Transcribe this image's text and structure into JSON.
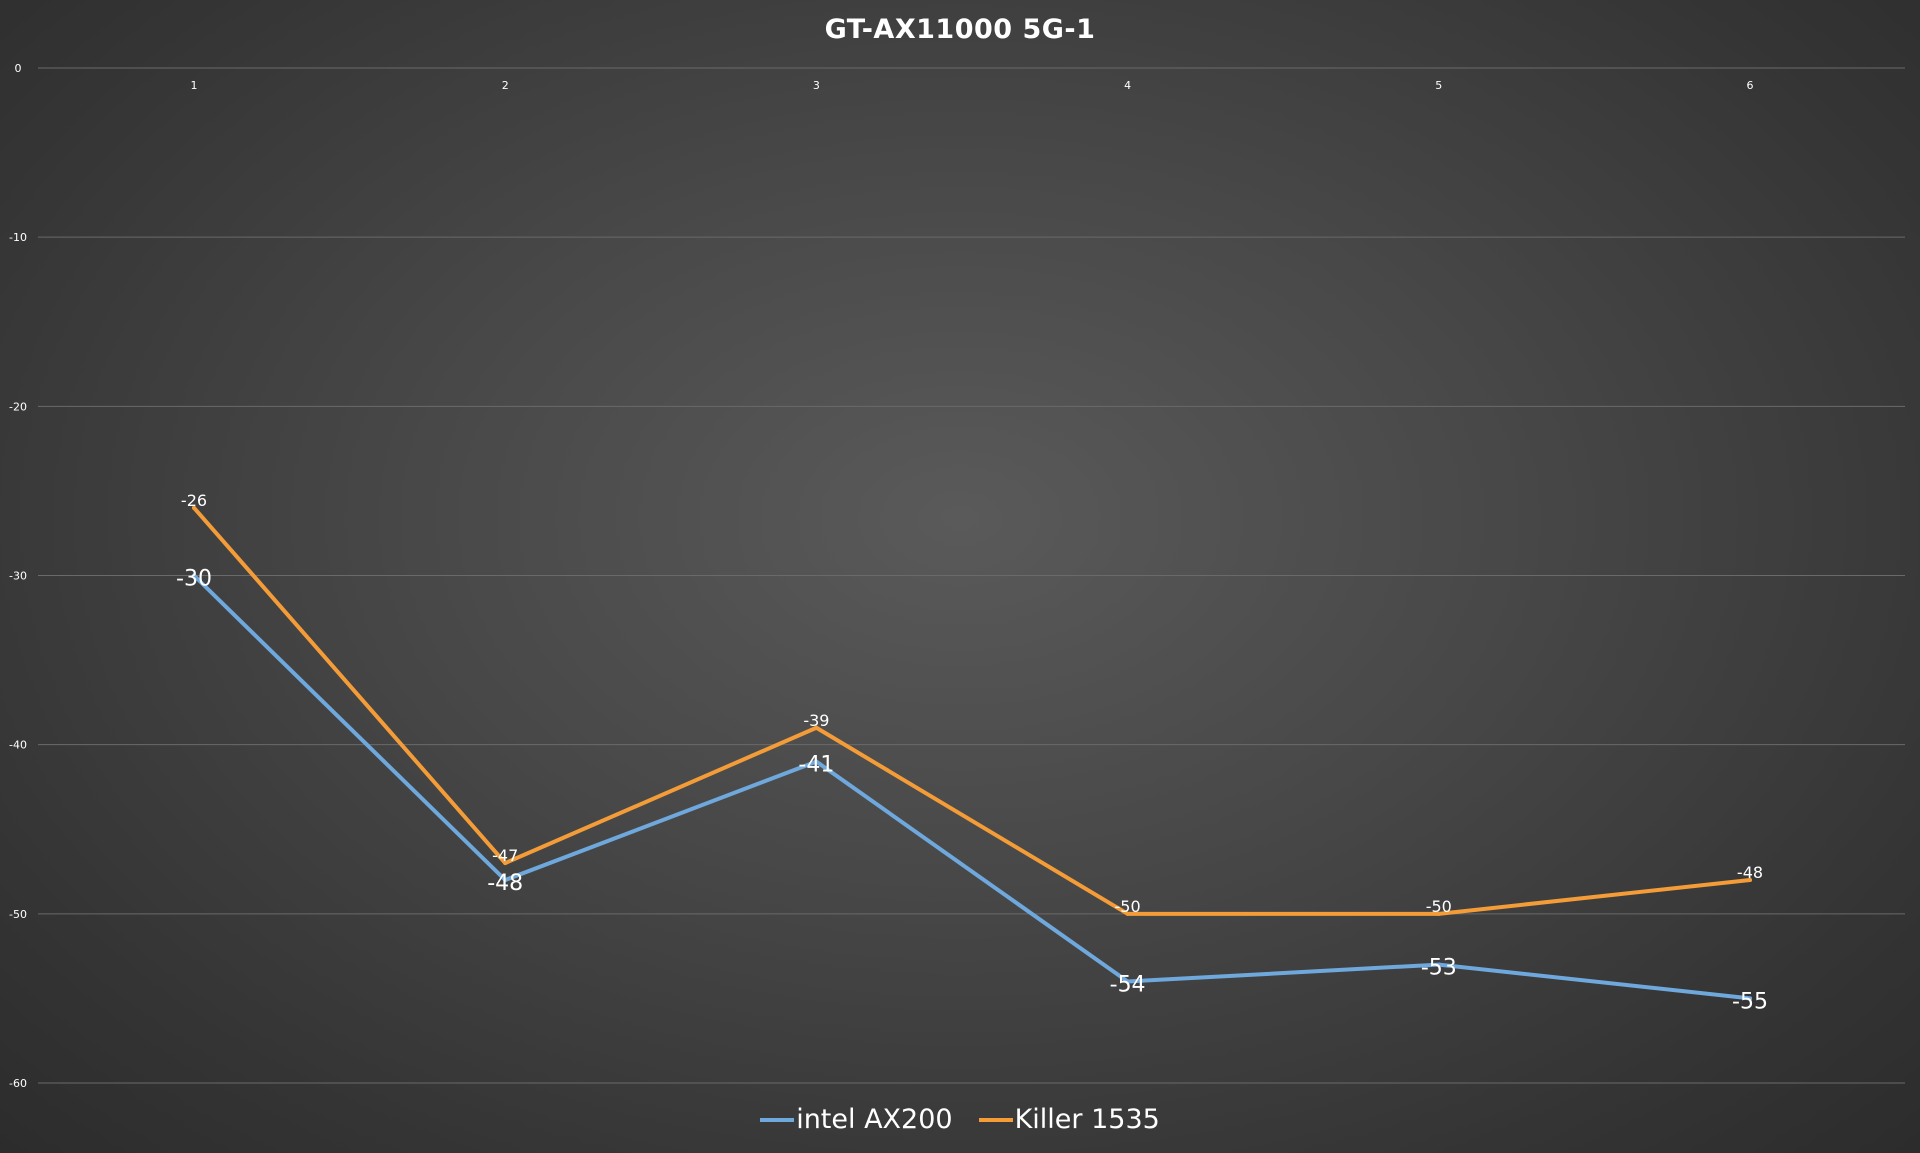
{
  "chart_data": {
    "type": "line",
    "title": "GT-AX11000 5G-1",
    "categories": [
      "1",
      "2",
      "3",
      "4",
      "5",
      "6"
    ],
    "ylim": [
      -60,
      0
    ],
    "yticks": [
      "0",
      "-10",
      "-20",
      "-30",
      "-40",
      "-50",
      "-60"
    ],
    "xlabel": "",
    "ylabel": "",
    "grid": true,
    "legend_position": "bottom",
    "series": [
      {
        "name": "intel AX200",
        "color": "#6fa8dc",
        "values": [
          -30,
          -48,
          -41,
          -54,
          -53,
          -55
        ]
      },
      {
        "name": "Killer 1535",
        "color": "#f39c38",
        "values": [
          -26,
          -47,
          -39,
          -50,
          -50,
          -48
        ]
      }
    ]
  }
}
